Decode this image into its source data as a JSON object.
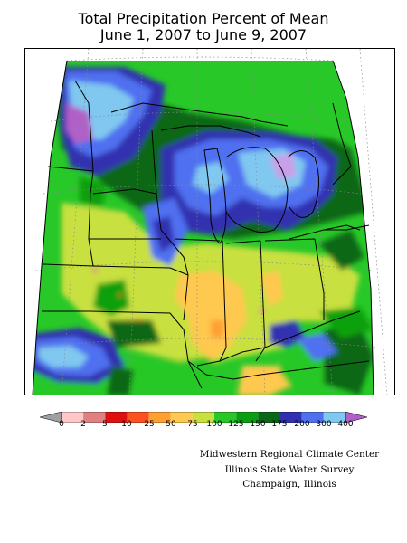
{
  "title": {
    "line1": "Total Precipitation Percent of Mean",
    "line2": "June 1, 2007 to June 9, 2007"
  },
  "legend": {
    "labels": [
      "0",
      "2",
      "5",
      "10",
      "25",
      "50",
      "75",
      "100",
      "125",
      "150",
      "175",
      "200",
      "300",
      "400"
    ],
    "colors": {
      "below_0": "#a0a0a0",
      "c0_2": "#ffc8c8",
      "c2_5": "#e08080",
      "c5_10": "#e01010",
      "c10_25": "#ff5020",
      "c25_50": "#ffa030",
      "c50_75": "#ffc850",
      "c75_100": "#c8e040",
      "c100_125": "#28c828",
      "c125_150": "#08a010",
      "c150_175": "#086818",
      "c175_200": "#3030b0",
      "c200_300": "#5070f0",
      "c300_400": "#80c8f0",
      "above_400": "#b060c8"
    }
  },
  "credit": {
    "line1": "Midwestern Regional Climate Center",
    "line2": "Illinois State Water Survey",
    "line3": "Champaign, Illinois"
  }
}
